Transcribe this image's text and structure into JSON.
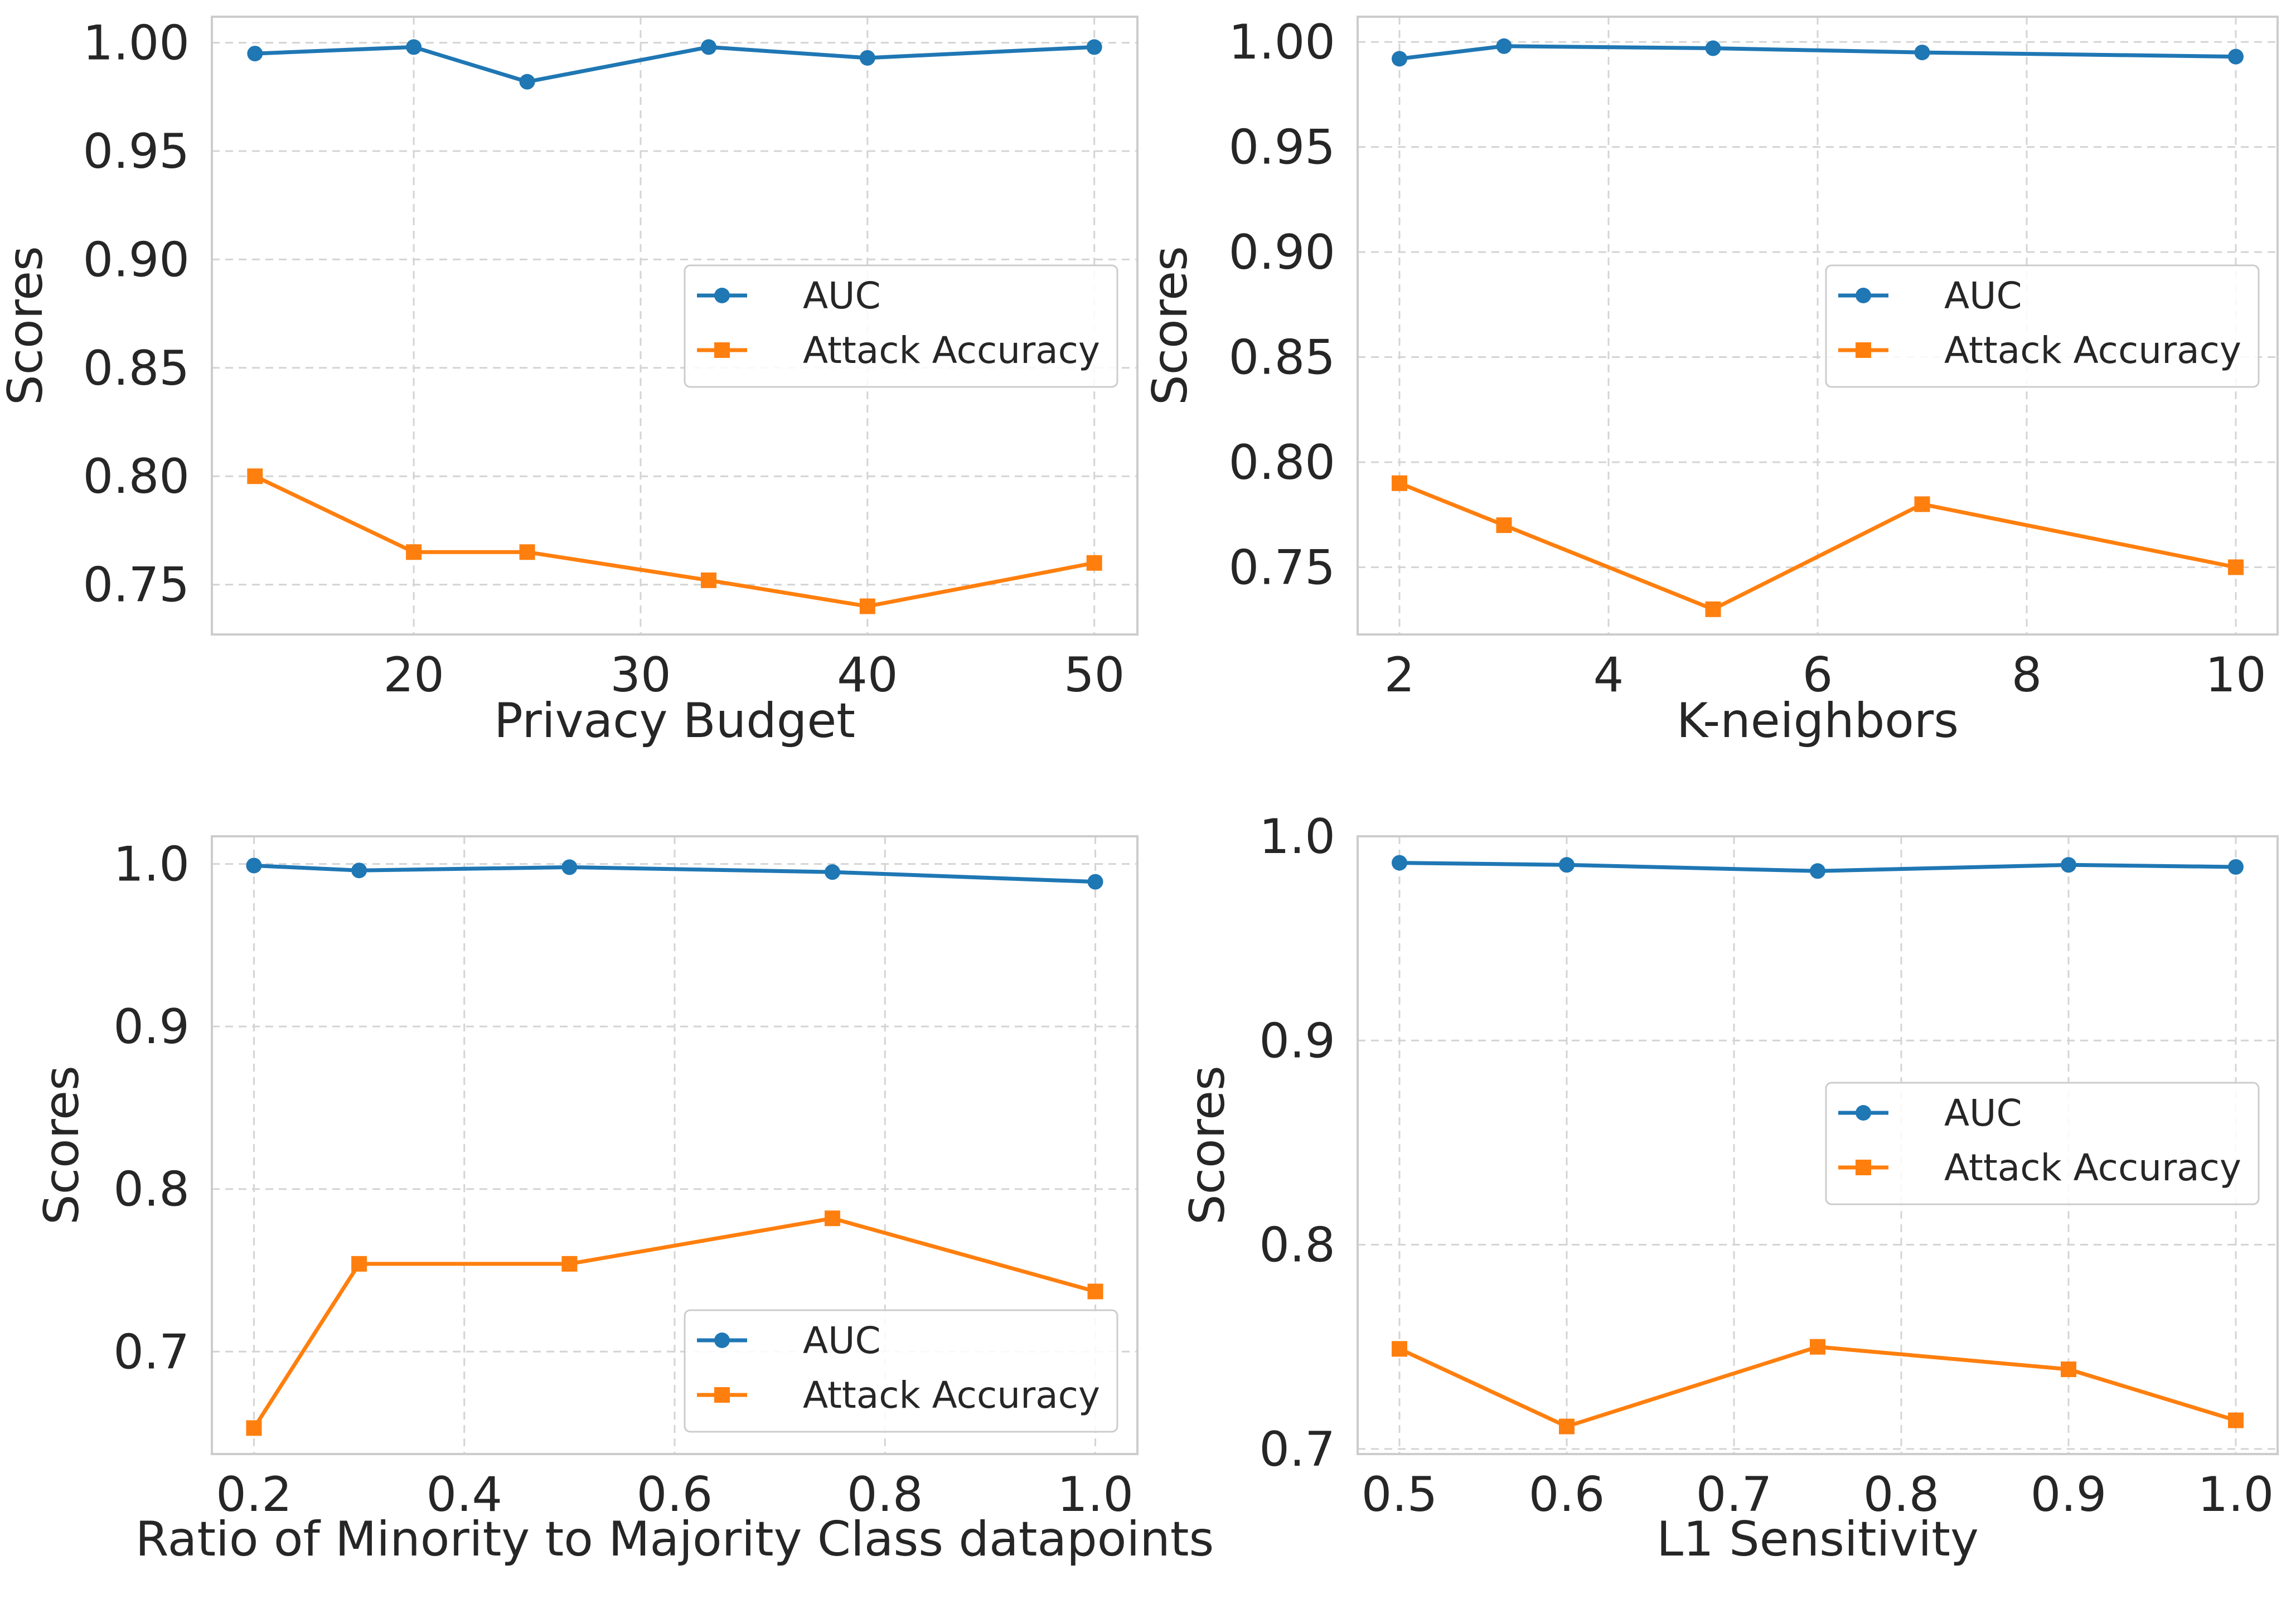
{
  "chart_data": [
    {
      "type": "line",
      "xlabel": "Privacy Budget",
      "ylabel": "Scores",
      "xlim": [
        11.1,
        51.9
      ],
      "ylim": [
        0.727,
        1.012
      ],
      "xticks": [
        20,
        30,
        40,
        50
      ],
      "xtick_labels": [
        "20",
        "30",
        "40",
        "50"
      ],
      "yticks": [
        0.75,
        0.8,
        0.85,
        0.9,
        0.95,
        1.0
      ],
      "ytick_labels": [
        "0.75",
        "0.80",
        "0.85",
        "0.90",
        "0.95",
        "1.00"
      ],
      "grid": true,
      "legend_position": "center-right",
      "x": [
        13,
        20,
        25,
        33,
        40,
        50
      ],
      "series": [
        {
          "name": "AUC",
          "marker": "circle",
          "color": "#1f77b4",
          "values": [
            0.995,
            0.998,
            0.982,
            0.998,
            0.993,
            0.998
          ]
        },
        {
          "name": "Attack Accuracy",
          "marker": "square",
          "color": "#ff7f0e",
          "values": [
            0.8,
            0.765,
            0.765,
            0.752,
            0.74,
            0.76
          ]
        }
      ]
    },
    {
      "type": "line",
      "xlabel": "K-neighbors",
      "ylabel": "Scores",
      "xlim": [
        1.6,
        10.4
      ],
      "ylim": [
        0.718,
        1.012
      ],
      "xticks": [
        2,
        4,
        6,
        8,
        10
      ],
      "xtick_labels": [
        "2",
        "4",
        "6",
        "8",
        "10"
      ],
      "yticks": [
        0.75,
        0.8,
        0.85,
        0.9,
        0.95,
        1.0
      ],
      "ytick_labels": [
        "0.75",
        "0.80",
        "0.85",
        "0.90",
        "0.95",
        "1.00"
      ],
      "grid": true,
      "legend_position": "center-right",
      "x": [
        2,
        3,
        5,
        7,
        10
      ],
      "series": [
        {
          "name": "AUC",
          "marker": "circle",
          "color": "#1f77b4",
          "values": [
            0.992,
            0.998,
            0.997,
            0.995,
            0.993
          ]
        },
        {
          "name": "Attack Accuracy",
          "marker": "square",
          "color": "#ff7f0e",
          "values": [
            0.79,
            0.77,
            0.73,
            0.78,
            0.75
          ]
        }
      ]
    },
    {
      "type": "line",
      "xlabel": "Ratio of Minority to Majority Class datapoints",
      "ylabel": "Scores",
      "xlim": [
        0.16,
        1.04
      ],
      "ylim": [
        0.637,
        1.017
      ],
      "xticks": [
        0.2,
        0.4,
        0.6,
        0.8,
        1.0
      ],
      "xtick_labels": [
        "0.2",
        "0.4",
        "0.6",
        "0.8",
        "1.0"
      ],
      "yticks": [
        0.7,
        0.8,
        0.9,
        1.0
      ],
      "ytick_labels": [
        "0.7",
        "0.8",
        "0.9",
        "1.0"
      ],
      "grid": true,
      "legend_position": "lower-right",
      "x": [
        0.2,
        0.3,
        0.5,
        0.75,
        1.0
      ],
      "series": [
        {
          "name": "AUC",
          "marker": "circle",
          "color": "#1f77b4",
          "values": [
            0.999,
            0.996,
            0.998,
            0.995,
            0.989
          ]
        },
        {
          "name": "Attack Accuracy",
          "marker": "square",
          "color": "#ff7f0e",
          "values": [
            0.653,
            0.754,
            0.754,
            0.782,
            0.737
          ]
        }
      ]
    },
    {
      "type": "line",
      "xlabel": "L1 Sensitivity",
      "ylabel": "Scores",
      "xlim": [
        0.475,
        1.025
      ],
      "ylim": [
        0.6975,
        1.0
      ],
      "xticks": [
        0.5,
        0.6,
        0.7,
        0.8,
        0.9,
        1.0
      ],
      "xtick_labels": [
        "0.5",
        "0.6",
        "0.7",
        "0.8",
        "0.9",
        "1.0"
      ],
      "yticks": [
        0.7,
        0.8,
        0.9,
        1.0
      ],
      "ytick_labels": [
        "0.7",
        "0.8",
        "0.9",
        "1.0"
      ],
      "grid": true,
      "legend_position": "center-right",
      "x": [
        0.5,
        0.6,
        0.75,
        0.9,
        1.0
      ],
      "series": [
        {
          "name": "AUC",
          "marker": "circle",
          "color": "#1f77b4",
          "values": [
            0.987,
            0.986,
            0.983,
            0.986,
            0.985
          ]
        },
        {
          "name": "Attack Accuracy",
          "marker": "square",
          "color": "#ff7f0e",
          "values": [
            0.749,
            0.711,
            0.75,
            0.739,
            0.714
          ]
        }
      ]
    }
  ]
}
